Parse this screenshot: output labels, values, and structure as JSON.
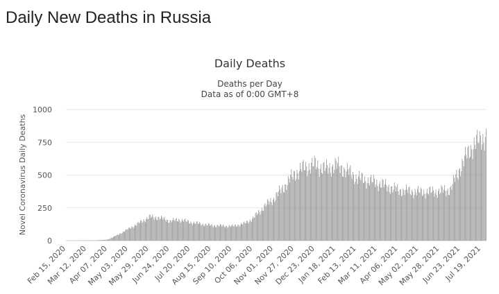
{
  "page": {
    "title": "Daily New Deaths in Russia"
  },
  "chart_data": {
    "type": "bar",
    "title": "Daily Deaths",
    "subtitle": [
      "Deaths per Day",
      "Data as of 0:00 GMT+8"
    ],
    "xlabel": "",
    "ylabel": "Novel Coronavirus Daily Deaths",
    "ylim": [
      0,
      1000
    ],
    "yticks": [
      0,
      250,
      500,
      750,
      1000
    ],
    "grid": true,
    "legend": "none",
    "bar_color": "#999999",
    "date_range": [
      "Feb 15, 2020",
      "Jul 25, 2021"
    ],
    "xtick_labels": [
      "Feb 15, 2020",
      "Mar 12, 2020",
      "Apr 07, 2020",
      "May 03, 2020",
      "May 29, 2020",
      "Jun 24, 2020",
      "Jul 20, 2020",
      "Aug 15, 2020",
      "Sep 10, 2020",
      "Oct 06, 2020",
      "Nov 01, 2020",
      "Nov 27, 2020",
      "Dec 23, 2020",
      "Jan 18, 2021",
      "Feb 13, 2021",
      "Mar 11, 2021",
      "Apr 06, 2021",
      "May 02, 2021",
      "May 28, 2021",
      "Jun 23, 2021",
      "Jul 19, 2021"
    ],
    "series_approx": [
      {
        "date": "Feb 15, 2020",
        "value": 0
      },
      {
        "date": "Mar 20, 2020",
        "value": 1
      },
      {
        "date": "Apr 07, 2020",
        "value": 8
      },
      {
        "date": "Apr 20, 2020",
        "value": 45
      },
      {
        "date": "May 03, 2020",
        "value": 90
      },
      {
        "date": "May 15, 2020",
        "value": 130
      },
      {
        "date": "May 29, 2020",
        "value": 180
      },
      {
        "date": "Jun 10, 2020",
        "value": 175
      },
      {
        "date": "Jun 24, 2020",
        "value": 150
      },
      {
        "date": "Jul 05, 2020",
        "value": 160
      },
      {
        "date": "Jul 20, 2020",
        "value": 140
      },
      {
        "date": "Aug 15, 2020",
        "value": 115
      },
      {
        "date": "Sep 10, 2020",
        "value": 110
      },
      {
        "date": "Sep 25, 2020",
        "value": 130
      },
      {
        "date": "Oct 06, 2020",
        "value": 170
      },
      {
        "date": "Oct 20, 2020",
        "value": 260
      },
      {
        "date": "Nov 01, 2020",
        "value": 320
      },
      {
        "date": "Nov 15, 2020",
        "value": 420
      },
      {
        "date": "Nov 27, 2020",
        "value": 510
      },
      {
        "date": "Dec 10, 2020",
        "value": 560
      },
      {
        "date": "Dec 23, 2020",
        "value": 580
      },
      {
        "date": "Jan 05, 2021",
        "value": 545
      },
      {
        "date": "Jan 18, 2021",
        "value": 575
      },
      {
        "date": "Feb 01, 2021",
        "value": 530
      },
      {
        "date": "Feb 13, 2021",
        "value": 480
      },
      {
        "date": "Mar 11, 2021",
        "value": 440
      },
      {
        "date": "Apr 06, 2021",
        "value": 385
      },
      {
        "date": "May 02, 2021",
        "value": 370
      },
      {
        "date": "May 28, 2021",
        "value": 375
      },
      {
        "date": "Jun 10, 2021",
        "value": 390
      },
      {
        "date": "Jun 23, 2021",
        "value": 560
      },
      {
        "date": "Jul 05, 2021",
        "value": 700
      },
      {
        "date": "Jul 19, 2021",
        "value": 780
      },
      {
        "date": "Jul 25, 2021",
        "value": 790
      }
    ]
  }
}
